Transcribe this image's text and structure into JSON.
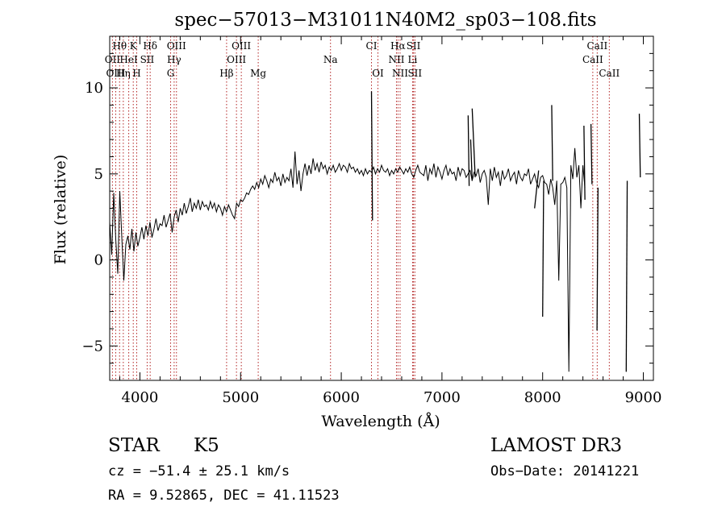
{
  "chart_data": {
    "type": "line",
    "title": "spec−57013−M31011N40M2_sp03−108.fits",
    "xlabel": "Wavelength (Å)",
    "ylabel": "Flux (relative)",
    "xlim": [
      3700,
      9100
    ],
    "ylim": [
      -7,
      13
    ],
    "xticks": [
      4000,
      5000,
      6000,
      7000,
      8000,
      9000
    ],
    "yticks": [
      -5,
      0,
      5,
      10
    ],
    "x_minor_step": 200,
    "y_minor_step": 1,
    "line_color": "#000000",
    "marker_color": "#b22222",
    "spectral_lines": [
      {
        "label": "Hθ",
        "x": 3798,
        "row": 0
      },
      {
        "label": "OII",
        "x": 3727,
        "row": 1
      },
      {
        "label": "OIII",
        "x": 3760,
        "row": 2
      },
      {
        "label": "K",
        "x": 3934,
        "row": 0
      },
      {
        "label": "HeI",
        "x": 3889,
        "row": 1
      },
      {
        "label": "Hη",
        "x": 3835,
        "row": 2
      },
      {
        "label": "Hδ",
        "x": 4102,
        "row": 0
      },
      {
        "label": "SII",
        "x": 4072,
        "row": 1
      },
      {
        "label": "H",
        "x": 3968,
        "row": 2
      },
      {
        "label": "OIII",
        "x": 4363,
        "row": 0
      },
      {
        "label": "Hγ",
        "x": 4340,
        "row": 1
      },
      {
        "label": "G",
        "x": 4305,
        "row": 2
      },
      {
        "label": "OIII",
        "x": 5007,
        "row": 0
      },
      {
        "label": "OIII",
        "x": 4959,
        "row": 1
      },
      {
        "label": "Hβ",
        "x": 4861,
        "row": 2
      },
      {
        "label": "Mg",
        "x": 5175,
        "row": 2
      },
      {
        "label": "Na",
        "x": 5893,
        "row": 1
      },
      {
        "label": "CI",
        "x": 6300,
        "row": 0
      },
      {
        "label": "OI",
        "x": 6364,
        "row": 2
      },
      {
        "label": "Hα",
        "x": 6563,
        "row": 0
      },
      {
        "label": "NII",
        "x": 6548,
        "row": 1
      },
      {
        "label": "NII",
        "x": 6584,
        "row": 2
      },
      {
        "label": "SII",
        "x": 6717,
        "row": 0
      },
      {
        "label": "Li",
        "x": 6708,
        "row": 1
      },
      {
        "label": "SII",
        "x": 6731,
        "row": 2
      },
      {
        "label": "CaII",
        "x": 8542,
        "row": 0
      },
      {
        "label": "CaII",
        "x": 8498,
        "row": 1
      },
      {
        "label": "CaII",
        "x": 8662,
        "row": 2
      }
    ],
    "spectrum": {
      "x_start": 3700,
      "x_step": 20,
      "y": [
        2.2,
        0.3,
        3.9,
        1.2,
        -0.8,
        4.0,
        1.3,
        -1.2,
        0.9,
        1.4,
        0.6,
        1.8,
        0.5,
        1.6,
        0.8,
        1.3,
        1.9,
        1.2,
        2.0,
        1.4,
        2.2,
        1.3,
        1.8,
        2.4,
        1.7,
        2.1,
        2.0,
        2.6,
        1.9,
        2.3,
        2.7,
        1.6,
        2.5,
        2.9,
        2.2,
        3.0,
        2.6,
        3.3,
        2.7,
        3.1,
        3.6,
        2.8,
        3.3,
        3.0,
        3.5,
        2.9,
        3.4,
        3.1,
        3.2,
        2.9,
        3.4,
        3.0,
        3.3,
        2.8,
        3.2,
        3.0,
        2.6,
        3.1,
        2.8,
        3.2,
        2.9,
        2.6,
        2.4,
        3.3,
        3.1,
        3.5,
        3.4,
        3.6,
        3.9,
        3.8,
        4.1,
        4.3,
        4.1,
        4.5,
        4.2,
        4.7,
        4.4,
        4.9,
        4.6,
        4.2,
        4.7,
        4.5,
        5.1,
        4.6,
        4.8,
        4.3,
        5.0,
        4.5,
        4.8,
        4.6,
        5.3,
        4.2,
        6.3,
        4.4,
        5.2,
        4.0,
        5.0,
        5.6,
        4.9,
        5.5,
        5.0,
        5.9,
        5.2,
        5.6,
        5.1,
        5.7,
        5.3,
        5.5,
        5.0,
        5.4,
        5.2,
        5.5,
        5.1,
        5.3,
        5.6,
        5.2,
        5.5,
        5.4,
        5.1,
        5.6,
        5.3,
        5.4,
        5.1,
        5.3,
        5.0,
        5.2,
        4.9,
        5.3,
        5.0,
        5.2,
        5.1,
        5.4,
        5.0,
        5.3,
        5.1,
        5.5,
        5.2,
        5.1,
        5.3,
        4.9,
        5.2,
        5.0,
        5.3,
        5.1,
        5.4,
        5.2,
        5.0,
        5.3,
        5.1,
        5.4,
        5.0,
        4.8,
        5.2,
        5.5,
        5.1,
        5.0,
        4.9,
        5.5,
        4.6,
        5.3,
        5.0,
        5.6,
        4.8,
        5.4,
        5.1,
        4.7,
        5.2,
        5.5,
        4.9,
        5.3,
        5.0,
        5.1,
        4.6,
        5.4,
        4.9,
        5.3,
        5.2,
        4.8,
        5.0,
        5.2,
        4.6,
        5.1,
        4.9,
        5.3,
        4.5,
        5.0,
        5.2,
        4.8,
        3.2,
        5.3,
        4.6,
        5.4,
        4.8,
        5.1,
        4.3,
        5.2,
        4.7,
        4.9,
        5.3,
        4.6,
        4.9,
        5.1,
        4.4,
        5.2,
        4.8,
        4.6,
        5.0,
        4.9,
        5.3,
        4.4,
        4.7,
        5.0,
        4.5,
        4.2,
        4.8,
        4.9,
        4.5,
        4.4,
        3.8,
        4.7,
        4.2,
        3.2,
        4.6,
        -1.2,
        4.4,
        4.5,
        4.8,
        4.2,
        -6.5,
        5.5,
        4.7,
        6.5,
        4.8,
        5.5,
        3.0,
        5.5,
        4.2
      ]
    },
    "spikes": [
      {
        "x": 6300,
        "y": 9.8
      },
      {
        "x": 6310,
        "y": 2.3
      },
      {
        "x": 7260,
        "y": 8.4
      },
      {
        "x": 7270,
        "y": 4.3
      },
      {
        "x": 7285,
        "y": 7.0
      },
      {
        "x": 7300,
        "y": 4.6
      },
      {
        "x": 7300,
        "y": 8.8
      },
      {
        "x": 7330,
        "y": 4.8
      },
      {
        "x": 7920,
        "y": 3.0
      },
      {
        "x": 7960,
        "y": 5.2
      },
      {
        "x": 8000,
        "y": -3.3
      },
      {
        "x": 8010,
        "y": 4.6
      },
      {
        "x": 8090,
        "y": 9.0
      },
      {
        "x": 8100,
        "y": 4.6
      },
      {
        "x": 8410,
        "y": 7.8
      },
      {
        "x": 8420,
        "y": 3.5
      },
      {
        "x": 8480,
        "y": 7.9
      },
      {
        "x": 8490,
        "y": 4.4
      },
      {
        "x": 8540,
        "y": -4.1
      },
      {
        "x": 8550,
        "y": 4.2
      },
      {
        "x": 8830,
        "y": -6.5
      },
      {
        "x": 8840,
        "y": 4.6
      },
      {
        "x": 8960,
        "y": 8.5
      },
      {
        "x": 8970,
        "y": 4.8
      }
    ]
  },
  "info": {
    "class": "STAR",
    "subclass": "K5",
    "survey": "LAMOST DR3",
    "cz_line": "cz = −51.4 ± 25.1 km/s",
    "obs_date_line": "Obs−Date: 20141221",
    "coords_line": "RA =   9.52865, DEC =  41.11523"
  }
}
